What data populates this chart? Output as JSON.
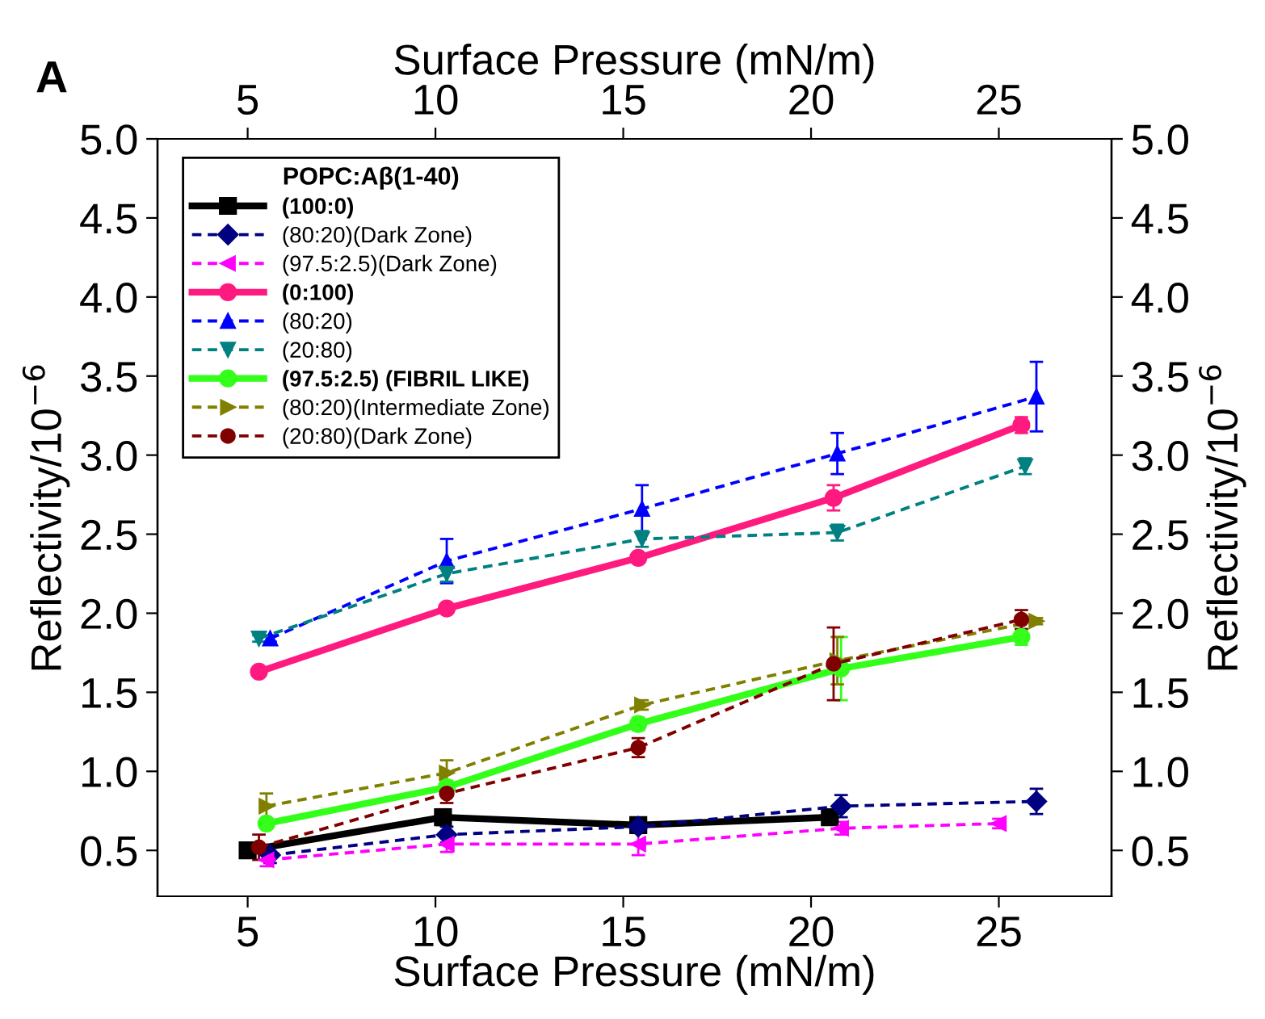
{
  "chart_data": {
    "type": "line",
    "xlabel": "Surface Pressure (mN/m)",
    "x2label": "Surface Pressure (mN/m)",
    "ylabel": "Reflectivity/10$^{−6}$",
    "y2label": "Reflectivity/10$^{−6}$",
    "annotations": [
      "A"
    ],
    "legend_title": "POPC:Aβ(1-40)",
    "legend": "top left",
    "grid": false,
    "xlim": [
      2.6,
      28.0
    ],
    "xticks": [
      5,
      10,
      15,
      20,
      25
    ],
    "x2lim": [
      2.6,
      28.0
    ],
    "x2ticks": [
      5,
      10,
      15,
      20,
      25
    ],
    "ylim": [
      0.21,
      5.0
    ],
    "yticks": [
      {
        "value": 0.5,
        "label": "0.5"
      },
      {
        "value": 1.0,
        "label": "1.0"
      },
      {
        "value": 1.5,
        "label": "1.5"
      },
      {
        "value": 2.0,
        "label": "2.0"
      },
      {
        "value": 2.5,
        "label": "2.5"
      },
      {
        "value": 3.0,
        "label": "3.0"
      },
      {
        "value": 3.5,
        "label": "3.5"
      },
      {
        "value": 4.0,
        "label": "4.0"
      },
      {
        "value": 4.5,
        "label": "4.5"
      },
      {
        "value": 5.0,
        "label": "5.0"
      }
    ],
    "y2lim": [
      0.21,
      5.0
    ],
    "y2ticks": [
      {
        "value": 0.5,
        "label": "0.5"
      },
      {
        "value": 1.0,
        "label": "1.0"
      },
      {
        "value": 1.5,
        "label": "1.5"
      },
      {
        "value": 2.0,
        "label": "2.0"
      },
      {
        "value": 2.5,
        "label": "2.5"
      },
      {
        "value": 3.0,
        "label": "3.0"
      },
      {
        "value": 3.5,
        "label": "3.5"
      },
      {
        "value": 4.0,
        "label": "4.0"
      },
      {
        "value": 4.5,
        "label": "4.5"
      },
      {
        "value": 5.0,
        "label": "5.0"
      }
    ],
    "series": [
      {
        "name": "(100:0)",
        "color": "#000000",
        "marker": "square",
        "line_style": "solid",
        "x": [
          5.0,
          10.2,
          15.4,
          20.5
        ],
        "values": [
          0.5,
          0.71,
          0.66,
          0.71
        ],
        "errors": [
          0.03,
          0.05,
          0.03,
          0.03
        ]
      },
      {
        "name": "(80:20)(Dark Zone)",
        "color": "#000080",
        "marker": "diamond",
        "line_style": "dashed",
        "x": [
          5.6,
          10.3,
          15.4,
          20.8,
          26.0
        ],
        "values": [
          0.47,
          0.6,
          0.65,
          0.78,
          0.81
        ],
        "errors": [
          0.05,
          0.05,
          0.04,
          0.07,
          0.08
        ]
      },
      {
        "name": "(97.5:2.5)(Dark Zone)",
        "color": "#ff00ff",
        "marker": "triangle_left",
        "line_style": "dashed",
        "x": [
          5.5,
          10.3,
          15.4,
          20.8,
          25.0
        ],
        "values": [
          0.44,
          0.54,
          0.54,
          0.64,
          0.67
        ],
        "errors": [
          0.04,
          0.05,
          0.07,
          0.04,
          0.03
        ]
      },
      {
        "name": "(0:100)",
        "color": "#ff1a7f",
        "marker": "circle",
        "line_style": "solid",
        "x": [
          5.3,
          10.3,
          15.4,
          20.6,
          25.6
        ],
        "values": [
          1.63,
          2.03,
          2.35,
          2.73,
          3.19
        ],
        "errors": [
          0.02,
          0.02,
          0.02,
          0.08,
          0.05
        ]
      },
      {
        "name": "(80:20)",
        "color": "#0000ff",
        "marker": "triangle",
        "line_style": "dashed",
        "x": [
          5.6,
          10.3,
          15.5,
          20.7,
          26.0
        ],
        "values": [
          1.84,
          2.33,
          2.66,
          3.01,
          3.37
        ],
        "errors": [
          0.02,
          0.14,
          0.15,
          0.13,
          0.22
        ]
      },
      {
        "name": "(20:80)",
        "color": "#008080",
        "marker": "triangle_down",
        "line_style": "dashed",
        "x": [
          5.3,
          10.3,
          15.5,
          20.7,
          25.7
        ],
        "values": [
          1.84,
          2.25,
          2.47,
          2.51,
          2.93
        ],
        "errors": [
          0.02,
          0.05,
          0.05,
          0.05,
          0.05
        ]
      },
      {
        "name": "(97.5:2.5) (FIBRIL LIKE)",
        "color": "#33ff1a",
        "marker": "circle",
        "line_style": "solid",
        "x": [
          5.5,
          10.3,
          15.4,
          20.8,
          25.6
        ],
        "values": [
          0.67,
          0.9,
          1.3,
          1.65,
          1.85
        ],
        "errors": [
          0.02,
          0.04,
          0.04,
          0.2,
          0.05
        ]
      },
      {
        "name": "(80:20)(Intermediate Zone)",
        "color": "#808000",
        "marker": "triangle_right",
        "line_style": "dashed",
        "x": [
          5.5,
          10.3,
          15.5,
          20.7,
          26.0
        ],
        "values": [
          0.78,
          0.99,
          1.42,
          1.7,
          1.95
        ],
        "errors": [
          0.08,
          0.08,
          0.03,
          0.15,
          0.02
        ]
      },
      {
        "name": "(20:80)(Dark Zone)",
        "color": "#800000",
        "marker": "circle",
        "line_style": "dashed",
        "x": [
          5.3,
          10.3,
          15.4,
          20.6,
          25.6
        ],
        "values": [
          0.52,
          0.86,
          1.15,
          1.68,
          1.96
        ],
        "errors": [
          0.08,
          0.06,
          0.06,
          0.23,
          0.06
        ]
      }
    ]
  }
}
